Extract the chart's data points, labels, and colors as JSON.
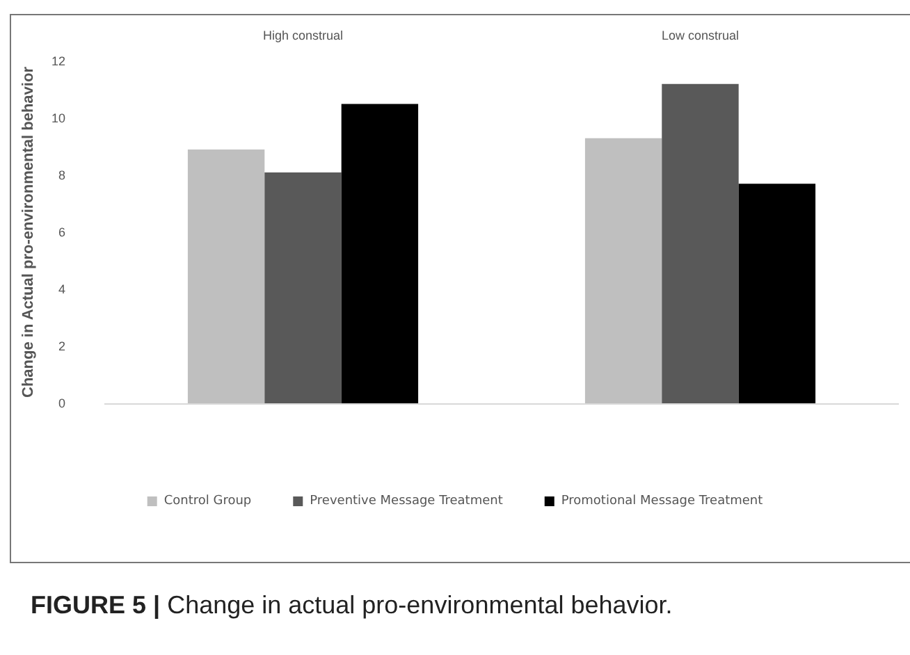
{
  "chart_data": {
    "type": "bar",
    "categories": [
      "High construal",
      "Low construal"
    ],
    "series": [
      {
        "name": "Control Group",
        "color": "#bfbfbf",
        "values": [
          8.9,
          9.3
        ]
      },
      {
        "name": "Preventive Message Treatment",
        "color": "#595959",
        "values": [
          8.1,
          11.2
        ]
      },
      {
        "name": "Promotional Message Treatment",
        "color": "#000000",
        "values": [
          10.5,
          7.7
        ]
      }
    ],
    "ylabel": "Change in Actual pro-environmental behavior",
    "ylim": [
      0,
      12
    ],
    "yticks": [
      0,
      2,
      4,
      6,
      8,
      10,
      12
    ],
    "grid": false,
    "legend": "bottom",
    "annotations": [
      "FIGURE 5 | Change in actual pro-environmental behavior."
    ]
  }
}
